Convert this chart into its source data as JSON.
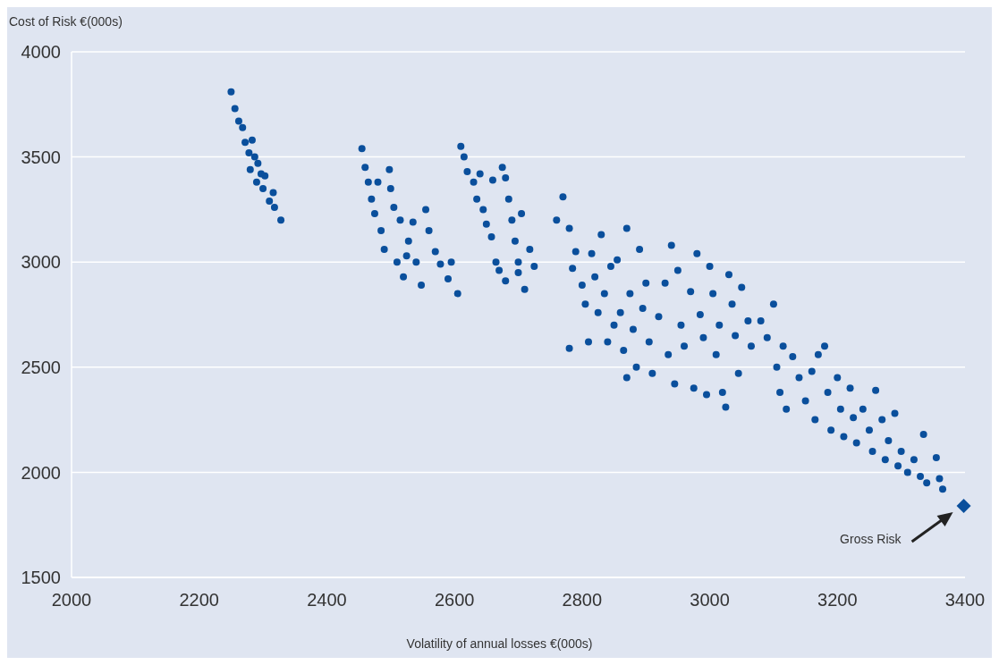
{
  "chart_data": {
    "type": "scatter",
    "xlabel": "Volatility of annual losses €(000s)",
    "ylabel": "Cost of Risk €(000s)",
    "xlim": [
      2000,
      3400
    ],
    "xticks": [
      2000,
      2200,
      2400,
      2600,
      2800,
      3000,
      3200,
      3400
    ],
    "ylim": [
      1500,
      4000
    ],
    "yticks": [
      1500,
      2000,
      2500,
      3000,
      3500,
      4000
    ],
    "grid": "y",
    "legend": false,
    "annotations": [
      "Gross Risk"
    ],
    "series": [
      {
        "color": "#0a4f9c",
        "marker": "circle",
        "x": [
          2250,
          2256,
          2262,
          2268,
          2272,
          2278,
          2283,
          2287,
          2292,
          2297,
          2303,
          2300,
          2310,
          2318,
          2328,
          2316,
          2290,
          2280,
          2455,
          2460,
          2465,
          2470,
          2475,
          2485,
          2490,
          2498,
          2500,
          2505,
          2510,
          2515,
          2520,
          2528,
          2535,
          2540,
          2548,
          2555,
          2560,
          2570,
          2578,
          2590,
          2595,
          2605,
          2480,
          2525,
          2610,
          2615,
          2620,
          2630,
          2635,
          2645,
          2650,
          2658,
          2665,
          2670,
          2675,
          2680,
          2685,
          2690,
          2695,
          2700,
          2705,
          2710,
          2718,
          2725,
          2660,
          2640,
          2680,
          2700,
          2760,
          2770,
          2780,
          2785,
          2790,
          2800,
          2805,
          2815,
          2820,
          2825,
          2830,
          2835,
          2840,
          2845,
          2850,
          2855,
          2860,
          2865,
          2870,
          2875,
          2880,
          2885,
          2890,
          2895,
          2900,
          2905,
          2910,
          2920,
          2930,
          2935,
          2940,
          2945,
          2950,
          2955,
          2960,
          2970,
          2975,
          2980,
          2985,
          2990,
          2995,
          3000,
          3005,
          3010,
          3015,
          3020,
          3025,
          3030,
          3035,
          3040,
          3045,
          3050,
          3060,
          3065,
          2810,
          2870,
          2780,
          3080,
          3090,
          3100,
          3105,
          3110,
          3115,
          3120,
          3130,
          3140,
          3150,
          3160,
          3165,
          3170,
          3180,
          3185,
          3190,
          3200,
          3205,
          3210,
          3220,
          3225,
          3230,
          3240,
          3250,
          3255,
          3260,
          3270,
          3275,
          3280,
          3290,
          3295,
          3300,
          3310,
          3320,
          3330,
          3335,
          3340,
          3355,
          3360,
          3365
        ],
        "values": [
          3810,
          3730,
          3670,
          3640,
          3570,
          3520,
          3580,
          3500,
          3470,
          3420,
          3410,
          3350,
          3290,
          3260,
          3200,
          3330,
          3380,
          3440,
          3540,
          3450,
          3380,
          3300,
          3230,
          3150,
          3060,
          3440,
          3350,
          3260,
          3000,
          3200,
          2930,
          3100,
          3190,
          3000,
          2890,
          3250,
          3150,
          3050,
          2990,
          2920,
          3000,
          2850,
          3380,
          3030,
          3550,
          3500,
          3430,
          3380,
          3300,
          3250,
          3180,
          3120,
          3000,
          2960,
          3450,
          3400,
          3300,
          3200,
          3100,
          3000,
          3230,
          2870,
          3060,
          2980,
          3390,
          3420,
          2910,
          2950,
          3200,
          3310,
          3160,
          2970,
          3050,
          2890,
          2800,
          3040,
          2930,
          2760,
          3130,
          2850,
          2620,
          2980,
          2700,
          3010,
          2760,
          2580,
          3160,
          2850,
          2680,
          2500,
          3060,
          2780,
          2900,
          2620,
          2470,
          2740,
          2900,
          2560,
          3080,
          2420,
          2960,
          2700,
          2600,
          2860,
          2400,
          3040,
          2750,
          2640,
          2370,
          2980,
          2850,
          2560,
          2700,
          2380,
          2310,
          2940,
          2800,
          2650,
          2470,
          2880,
          2720,
          2600,
          2620,
          2450,
          2590,
          2720,
          2640,
          2800,
          2500,
          2380,
          2600,
          2300,
          2550,
          2450,
          2340,
          2480,
          2250,
          2560,
          2600,
          2380,
          2200,
          2450,
          2300,
          2170,
          2400,
          2260,
          2140,
          2300,
          2200,
          2100,
          2390,
          2250,
          2060,
          2150,
          2280,
          2030,
          2100,
          2000,
          2060,
          1980,
          2180,
          1950,
          2070,
          1970,
          1920
        ]
      },
      {
        "color": "#0a4f9c",
        "marker": "diamond",
        "x": [
          3398
        ],
        "values": [
          1840
        ]
      }
    ]
  }
}
